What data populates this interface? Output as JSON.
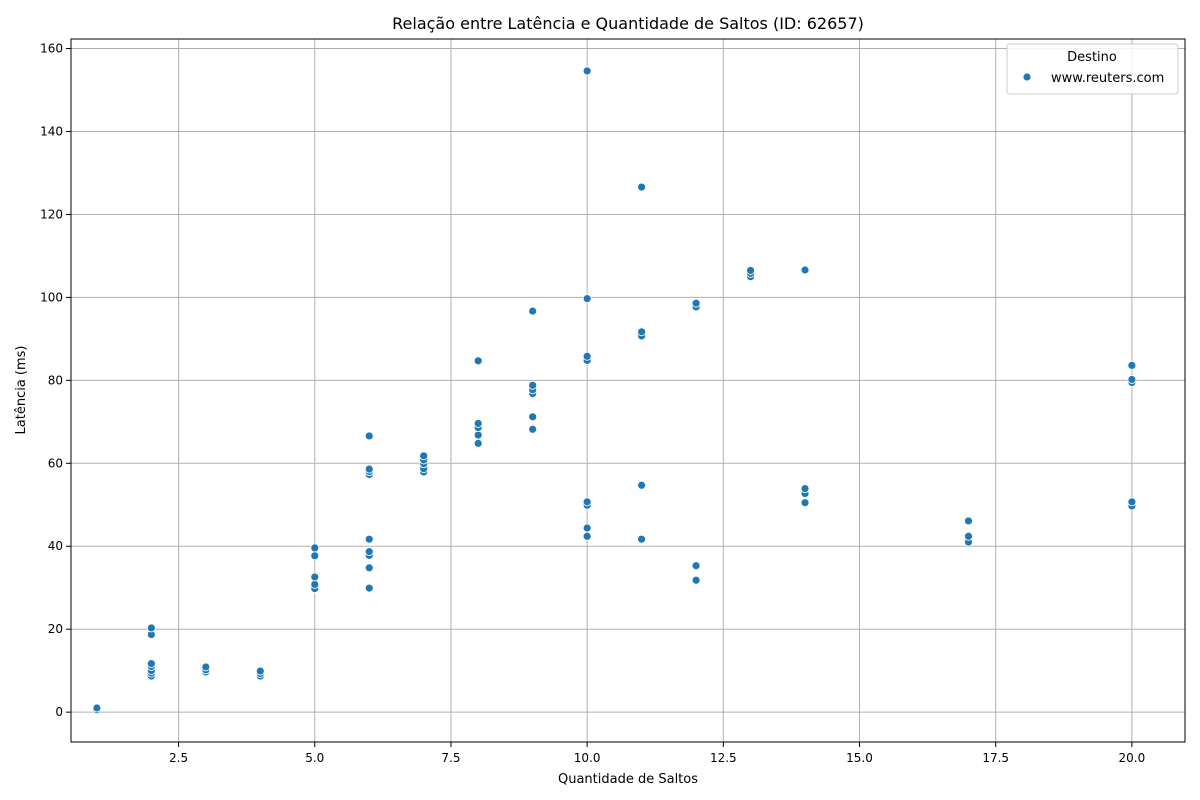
{
  "chart_data": {
    "type": "scatter",
    "title": "Relação entre Latência e Quantidade de Saltos (ID: 62657)",
    "xlabel": "Quantidade de Saltos",
    "ylabel": "Latência (ms)",
    "xlim": [
      0.525,
      20.975
    ],
    "ylim": [
      -7.2,
      162.3
    ],
    "x_ticks": [
      2.5,
      5.0,
      7.5,
      10.0,
      12.5,
      15.0,
      17.5,
      20.0
    ],
    "x_tick_labels": [
      "2.5",
      "5.0",
      "7.5",
      "10.0",
      "12.5",
      "15.0",
      "17.5",
      "20.0"
    ],
    "y_ticks": [
      0,
      20,
      40,
      60,
      80,
      100,
      120,
      140,
      160
    ],
    "y_tick_labels": [
      "0",
      "20",
      "40",
      "60",
      "80",
      "100",
      "120",
      "140",
      "160"
    ],
    "grid": true,
    "legend": {
      "title": "Destino",
      "placement": "top-right"
    },
    "color": "#1f77b4",
    "series": [
      {
        "name": "www.reuters.com",
        "points": [
          [
            1,
            0.6
          ],
          [
            1,
            1.0
          ],
          [
            2,
            8.7
          ],
          [
            2,
            9.4
          ],
          [
            2,
            10.0
          ],
          [
            2,
            11.0
          ],
          [
            2,
            11.7
          ],
          [
            2,
            18.7
          ],
          [
            2,
            20.3
          ],
          [
            3,
            9.7
          ],
          [
            3,
            10.2
          ],
          [
            3,
            10.9
          ],
          [
            4,
            8.7
          ],
          [
            4,
            9.3
          ],
          [
            4,
            9.9
          ],
          [
            5,
            29.8
          ],
          [
            5,
            30.8
          ],
          [
            5,
            32.6
          ],
          [
            5,
            37.7
          ],
          [
            5,
            39.6
          ],
          [
            6,
            29.9
          ],
          [
            6,
            34.8
          ],
          [
            6,
            37.8
          ],
          [
            6,
            38.7
          ],
          [
            6,
            41.7
          ],
          [
            6,
            57.3
          ],
          [
            6,
            58.0
          ],
          [
            6,
            58.6
          ],
          [
            6,
            66.6
          ],
          [
            7,
            57.9
          ],
          [
            7,
            58.7
          ],
          [
            7,
            59.9
          ],
          [
            7,
            60.8
          ],
          [
            7,
            61.8
          ],
          [
            8,
            64.8
          ],
          [
            8,
            66.8
          ],
          [
            8,
            68.6
          ],
          [
            8,
            69.6
          ],
          [
            8,
            84.7
          ],
          [
            9,
            68.2
          ],
          [
            9,
            71.2
          ],
          [
            9,
            76.8
          ],
          [
            9,
            77.7
          ],
          [
            9,
            78.8
          ],
          [
            9,
            96.7
          ],
          [
            10,
            42.4
          ],
          [
            10,
            44.4
          ],
          [
            10,
            49.9
          ],
          [
            10,
            50.7
          ],
          [
            10,
            84.8
          ],
          [
            10,
            85.8
          ],
          [
            10,
            99.7
          ],
          [
            10,
            154.6
          ],
          [
            11,
            41.7
          ],
          [
            11,
            54.7
          ],
          [
            11,
            90.7
          ],
          [
            11,
            91.7
          ],
          [
            11,
            126.6
          ],
          [
            12,
            31.8
          ],
          [
            12,
            35.3
          ],
          [
            12,
            97.7
          ],
          [
            12,
            98.6
          ],
          [
            13,
            105.0
          ],
          [
            13,
            105.8
          ],
          [
            13,
            106.5
          ],
          [
            14,
            50.5
          ],
          [
            14,
            52.7
          ],
          [
            14,
            53.9
          ],
          [
            14,
            106.6
          ],
          [
            17,
            41.0
          ],
          [
            17,
            42.4
          ],
          [
            17,
            46.1
          ],
          [
            20,
            49.7
          ],
          [
            20,
            50.7
          ],
          [
            20,
            79.5
          ],
          [
            20,
            80.2
          ],
          [
            20,
            83.6
          ]
        ]
      }
    ]
  }
}
